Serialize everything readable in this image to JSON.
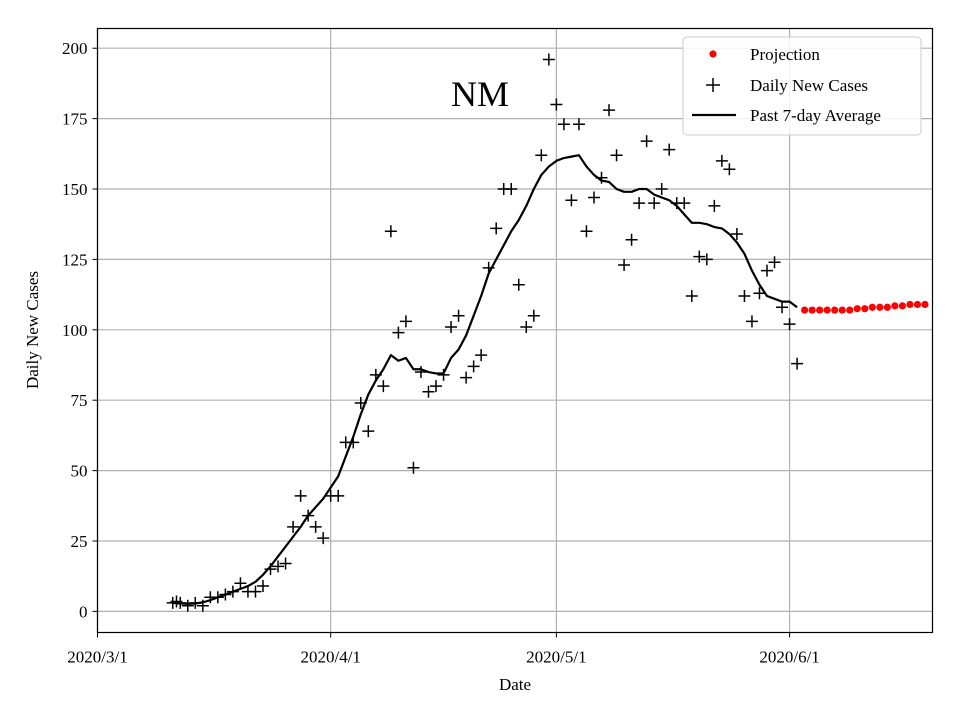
{
  "chart_data": {
    "type": "scatter",
    "title": "NM",
    "xlabel": "Date",
    "ylabel": "Daily New Cases",
    "grid": true,
    "legend_position": "top-right",
    "x_start_date": "2020-03-01",
    "xlim": [
      0,
      111
    ],
    "ylim": [
      -7.5,
      207
    ],
    "xticks": [
      {
        "label": "2020/3/1",
        "day": 0
      },
      {
        "label": "2020/4/1",
        "day": 31
      },
      {
        "label": "2020/5/1",
        "day": 61
      },
      {
        "label": "2020/6/1",
        "day": 92
      }
    ],
    "yticks": [
      0,
      25,
      50,
      75,
      100,
      125,
      150,
      175,
      200
    ],
    "legend": [
      "Projection",
      "Daily New Cases",
      "Past 7-day Average"
    ],
    "series": [
      {
        "name": "Daily New Cases",
        "marker": "plus",
        "color": "#000000",
        "points": [
          [
            10,
            3
          ],
          [
            10.5,
            3.5
          ],
          [
            11,
            3
          ],
          [
            12,
            2
          ],
          [
            13,
            3
          ],
          [
            14,
            2
          ],
          [
            15,
            5
          ],
          [
            16,
            5
          ],
          [
            17,
            6
          ],
          [
            18,
            7
          ],
          [
            19,
            10
          ],
          [
            20,
            7
          ],
          [
            21,
            7
          ],
          [
            22,
            9
          ],
          [
            23,
            15
          ],
          [
            24,
            16
          ],
          [
            25,
            17
          ],
          [
            26,
            30
          ],
          [
            27,
            41
          ],
          [
            28,
            34
          ],
          [
            29,
            30
          ],
          [
            30,
            26
          ],
          [
            31,
            41
          ],
          [
            32,
            41
          ],
          [
            33,
            60
          ],
          [
            34,
            60
          ],
          [
            35,
            74
          ],
          [
            36,
            64
          ],
          [
            37,
            84
          ],
          [
            38,
            80
          ],
          [
            39,
            135
          ],
          [
            40,
            99
          ],
          [
            41,
            103
          ],
          [
            42,
            51
          ],
          [
            43,
            85
          ],
          [
            44,
            78
          ],
          [
            45,
            80
          ],
          [
            46,
            84
          ],
          [
            47,
            101
          ],
          [
            48,
            105
          ],
          [
            49,
            83
          ],
          [
            50,
            87
          ],
          [
            51,
            91
          ],
          [
            52,
            122
          ],
          [
            53,
            136
          ],
          [
            54,
            150
          ],
          [
            55,
            150
          ],
          [
            56,
            116
          ],
          [
            57,
            101
          ],
          [
            58,
            105
          ],
          [
            59,
            162
          ],
          [
            60,
            196
          ],
          [
            61,
            180
          ],
          [
            62,
            173
          ],
          [
            63,
            146
          ],
          [
            64,
            173
          ],
          [
            65,
            135
          ],
          [
            66,
            147
          ],
          [
            67,
            154
          ],
          [
            68,
            178
          ],
          [
            69,
            162
          ],
          [
            70,
            123
          ],
          [
            71,
            132
          ],
          [
            72,
            145
          ],
          [
            73,
            167
          ],
          [
            74,
            145
          ],
          [
            75,
            150
          ],
          [
            76,
            164
          ],
          [
            77,
            145
          ],
          [
            78,
            145
          ],
          [
            79,
            112
          ],
          [
            80,
            126
          ],
          [
            81,
            125
          ],
          [
            82,
            144
          ],
          [
            83,
            160
          ],
          [
            84,
            157
          ],
          [
            85,
            134
          ],
          [
            86,
            112
          ],
          [
            87,
            103
          ],
          [
            88,
            113
          ],
          [
            89,
            121
          ],
          [
            90,
            124
          ],
          [
            91,
            108
          ],
          [
            92,
            102
          ],
          [
            93,
            88
          ]
        ]
      },
      {
        "name": "Past 7-day Average",
        "marker": "line",
        "color": "#000000",
        "points": [
          [
            10,
            3
          ],
          [
            11,
            2.8
          ],
          [
            12,
            2.7
          ],
          [
            13,
            2.8
          ],
          [
            14,
            3.2
          ],
          [
            15,
            4
          ],
          [
            16,
            5
          ],
          [
            17,
            6
          ],
          [
            18,
            7
          ],
          [
            19,
            8
          ],
          [
            20,
            9
          ],
          [
            21,
            10.5
          ],
          [
            22,
            13
          ],
          [
            23,
            16
          ],
          [
            24,
            19.5
          ],
          [
            25,
            23
          ],
          [
            26,
            26.5
          ],
          [
            27,
            30
          ],
          [
            28,
            34
          ],
          [
            29,
            37
          ],
          [
            30,
            40
          ],
          [
            31,
            44
          ],
          [
            32,
            48
          ],
          [
            33,
            55
          ],
          [
            34,
            62
          ],
          [
            35,
            70
          ],
          [
            36,
            77
          ],
          [
            37,
            82
          ],
          [
            38,
            86
          ],
          [
            39,
            91
          ],
          [
            40,
            89
          ],
          [
            41,
            90
          ],
          [
            42,
            86
          ],
          [
            43,
            86
          ],
          [
            44,
            85
          ],
          [
            45,
            84.5
          ],
          [
            46,
            84.5
          ],
          [
            47,
            90
          ],
          [
            48,
            93
          ],
          [
            49,
            98
          ],
          [
            50,
            105
          ],
          [
            51,
            112
          ],
          [
            52,
            120
          ],
          [
            53,
            125
          ],
          [
            54,
            130
          ],
          [
            55,
            135
          ],
          [
            56,
            139
          ],
          [
            57,
            144
          ],
          [
            58,
            150
          ],
          [
            59,
            155
          ],
          [
            60,
            158
          ],
          [
            61,
            160
          ],
          [
            62,
            161
          ],
          [
            63,
            161.5
          ],
          [
            64,
            162
          ],
          [
            65,
            158
          ],
          [
            66,
            155
          ],
          [
            67,
            153
          ],
          [
            68,
            152.5
          ],
          [
            69,
            150
          ],
          [
            70,
            149
          ],
          [
            71,
            149
          ],
          [
            72,
            150
          ],
          [
            73,
            150
          ],
          [
            74,
            148
          ],
          [
            75,
            147
          ],
          [
            76,
            146
          ],
          [
            77,
            144
          ],
          [
            78,
            141
          ],
          [
            79,
            138
          ],
          [
            80,
            138
          ],
          [
            81,
            137.5
          ],
          [
            82,
            136.5
          ],
          [
            83,
            136
          ],
          [
            84,
            134
          ],
          [
            85,
            131
          ],
          [
            86,
            127
          ],
          [
            87,
            121
          ],
          [
            88,
            116
          ],
          [
            89,
            112
          ],
          [
            90,
            111
          ],
          [
            91,
            110
          ],
          [
            92,
            110
          ],
          [
            93,
            108
          ]
        ]
      },
      {
        "name": "Projection",
        "marker": "dot",
        "color": "#ff0000",
        "points": [
          [
            94,
            107
          ],
          [
            95,
            107
          ],
          [
            96,
            107
          ],
          [
            97,
            107
          ],
          [
            98,
            107
          ],
          [
            99,
            107
          ],
          [
            100,
            107
          ],
          [
            101,
            107.5
          ],
          [
            102,
            107.5
          ],
          [
            103,
            108
          ],
          [
            104,
            108
          ],
          [
            105,
            108
          ],
          [
            106,
            108.5
          ],
          [
            107,
            108.5
          ],
          [
            108,
            109
          ],
          [
            109,
            109
          ],
          [
            110,
            109
          ]
        ]
      }
    ]
  }
}
